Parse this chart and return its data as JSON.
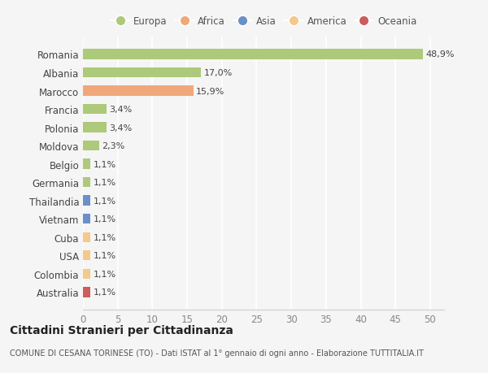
{
  "categories": [
    "Romania",
    "Albania",
    "Marocco",
    "Francia",
    "Polonia",
    "Moldova",
    "Belgio",
    "Germania",
    "Thailandia",
    "Vietnam",
    "Cuba",
    "USA",
    "Colombia",
    "Australia"
  ],
  "values": [
    48.9,
    17.0,
    15.9,
    3.4,
    3.4,
    2.3,
    1.1,
    1.1,
    1.1,
    1.1,
    1.1,
    1.1,
    1.1,
    1.1
  ],
  "bar_colors": [
    "#adc97a",
    "#adc97a",
    "#f0a87a",
    "#adc97a",
    "#adc97a",
    "#adc97a",
    "#adc97a",
    "#adc97a",
    "#6b8fc9",
    "#6b8fc9",
    "#f4c98b",
    "#f4c98b",
    "#f4c98b",
    "#cd5c5c"
  ],
  "labels": [
    "48,9%",
    "17,0%",
    "15,9%",
    "3,4%",
    "3,4%",
    "2,3%",
    "1,1%",
    "1,1%",
    "1,1%",
    "1,1%",
    "1,1%",
    "1,1%",
    "1,1%",
    "1,1%"
  ],
  "legend": [
    {
      "label": "Europa",
      "color": "#adc97a"
    },
    {
      "label": "Africa",
      "color": "#f0a87a"
    },
    {
      "label": "Asia",
      "color": "#6b8fc9"
    },
    {
      "label": "America",
      "color": "#f4c98b"
    },
    {
      "label": "Oceania",
      "color": "#cd5c5c"
    }
  ],
  "xlim": [
    0,
    52
  ],
  "xticks": [
    0,
    5,
    10,
    15,
    20,
    25,
    30,
    35,
    40,
    45,
    50
  ],
  "title": "Cittadini Stranieri per Cittadinanza",
  "subtitle": "COMUNE DI CESANA TORINESE (TO) - Dati ISTAT al 1° gennaio di ogni anno - Elaborazione TUTTITALIA.IT",
  "background_color": "#f5f5f5",
  "grid_color": "#ffffff",
  "bar_height": 0.55,
  "label_fontsize": 8.0,
  "tick_label_fontsize": 8.5,
  "title_fontsize": 10,
  "subtitle_fontsize": 7.0
}
